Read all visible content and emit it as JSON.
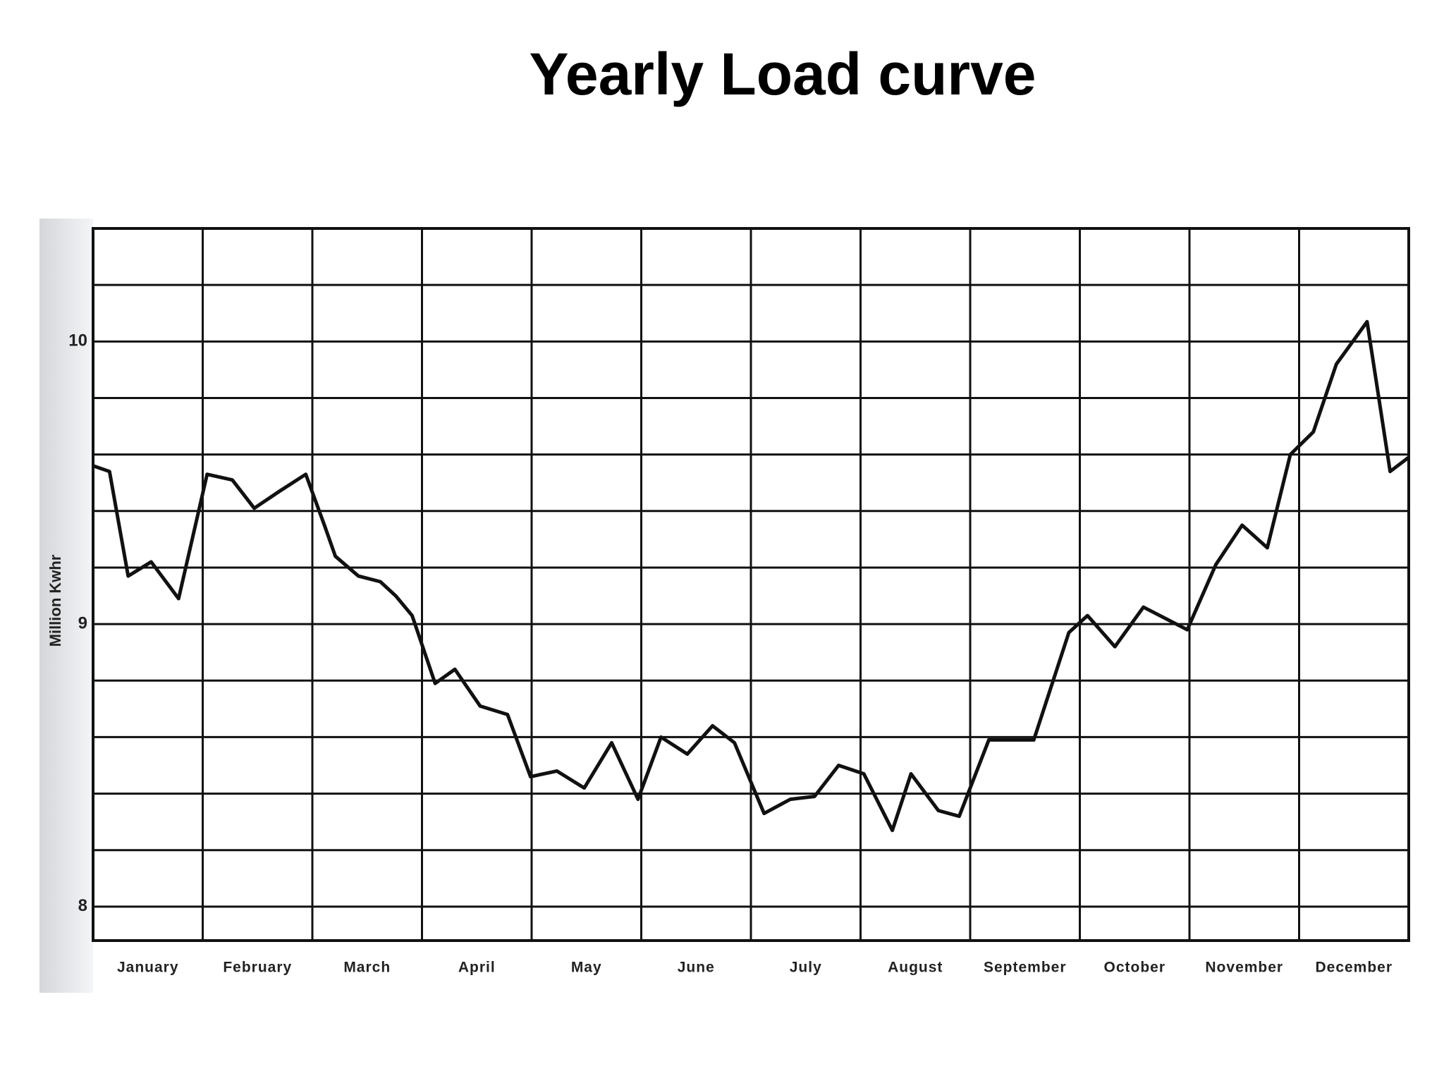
{
  "chart_data": {
    "type": "line",
    "title": "Yearly Load curve",
    "ylabel": "Million Kwhr",
    "x": [
      0,
      0.15,
      0.32,
      0.53,
      0.78,
      1.04,
      1.27,
      1.47,
      1.7,
      1.94,
      2.11,
      2.21,
      2.42,
      2.62,
      2.76,
      2.91,
      3.12,
      3.3,
      3.53,
      3.78,
      3.99,
      4.23,
      4.48,
      4.73,
      4.97,
      5.18,
      5.42,
      5.65,
      5.85,
      6.12,
      6.36,
      6.58,
      6.8,
      7.03,
      7.29,
      7.46,
      7.71,
      7.9,
      8.17,
      8.58,
      8.9,
      9.07,
      9.32,
      9.58,
      9.98,
      10.24,
      10.48,
      10.71,
      10.92,
      11.13,
      11.34,
      11.62,
      11.83,
      12
    ],
    "series": [
      {
        "color": "#111111",
        "values": [
          9.56,
          9.54,
          9.17,
          9.22,
          9.09,
          9.53,
          9.51,
          9.41,
          9.47,
          9.53,
          9.35,
          9.24,
          9.17,
          9.15,
          9.1,
          9.03,
          8.79,
          8.84,
          8.71,
          8.68,
          8.46,
          8.48,
          8.42,
          8.58,
          8.38,
          8.6,
          8.54,
          8.64,
          8.58,
          8.33,
          8.38,
          8.39,
          8.5,
          8.47,
          8.27,
          8.47,
          8.34,
          8.32,
          8.59,
          8.59,
          8.97,
          9.03,
          8.92,
          9.06,
          8.98,
          9.21,
          9.35,
          9.27,
          9.6,
          9.68,
          9.92,
          10.07,
          9.54,
          9.59
        ]
      }
    ],
    "xlim": [
      0,
      12
    ],
    "xticks": [
      {
        "value": 0.5,
        "label": "January"
      },
      {
        "value": 1.5,
        "label": "February"
      },
      {
        "value": 2.5,
        "label": "March"
      },
      {
        "value": 3.5,
        "label": "April"
      },
      {
        "value": 4.5,
        "label": "May"
      },
      {
        "value": 5.5,
        "label": "June"
      },
      {
        "value": 6.5,
        "label": "July"
      },
      {
        "value": 7.5,
        "label": "August"
      },
      {
        "value": 8.5,
        "label": "September"
      },
      {
        "value": 9.5,
        "label": "October"
      },
      {
        "value": 10.5,
        "label": "November"
      },
      {
        "value": 11.5,
        "label": "December"
      }
    ],
    "xgrid": [
      0,
      1,
      2,
      3,
      4,
      5,
      6,
      7,
      8,
      9,
      10,
      11,
      12
    ],
    "ylim": [
      7.88,
      10.4
    ],
    "yticks": [
      8,
      9,
      10
    ],
    "ygrid": [
      8,
      8.2,
      8.4,
      8.6,
      8.8,
      9,
      9.2,
      9.4,
      9.6,
      9.8,
      10,
      10.2,
      10.4
    ],
    "grid": true
  }
}
